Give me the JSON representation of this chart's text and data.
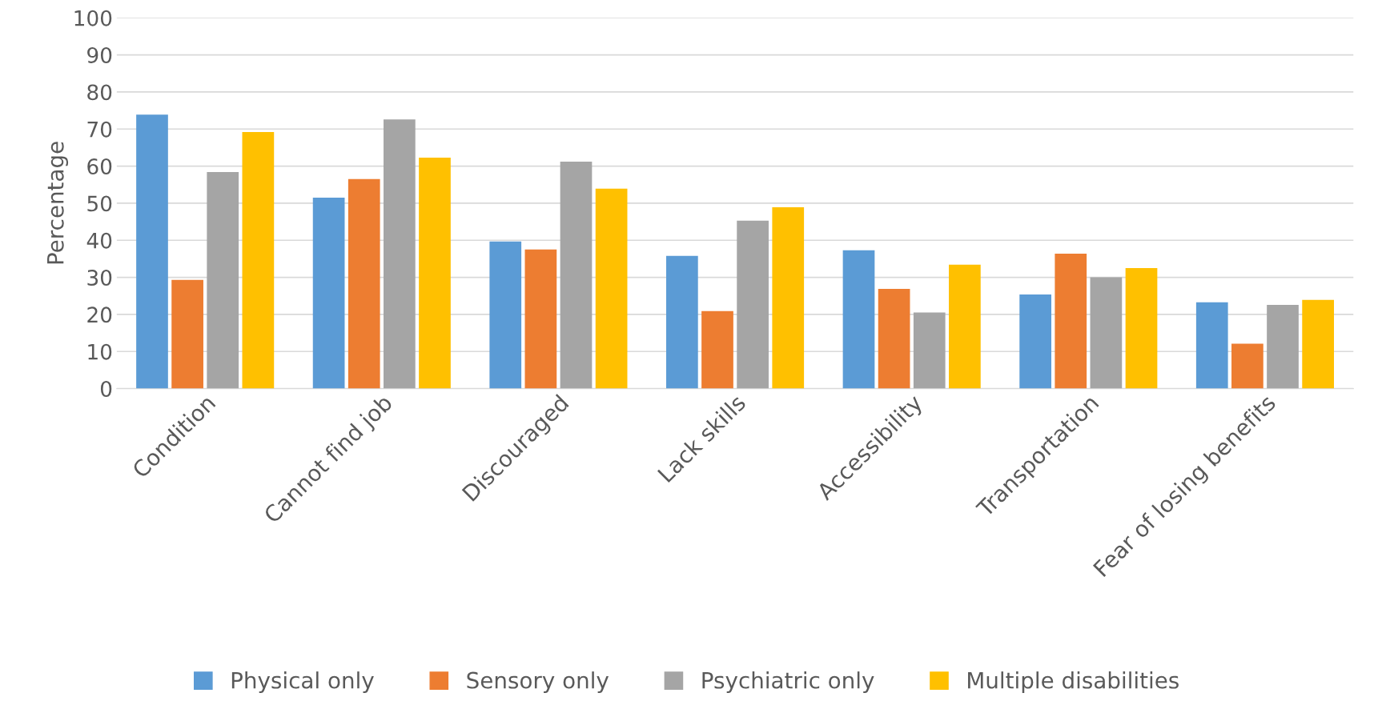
{
  "chart_data": {
    "type": "bar",
    "ylabel": "Percentage",
    "categories": [
      "Condition",
      "Cannot find job",
      "Discouraged",
      "Lack skills",
      "Accessibility",
      "Transportation",
      "Fear of losing benefits"
    ],
    "series": [
      {
        "name": "Physical only",
        "color": "#5b9bd5",
        "values": [
          73.9,
          51.5,
          39.7,
          35.8,
          37.3,
          25.4,
          23.3
        ]
      },
      {
        "name": "Sensory only",
        "color": "#ed7d31",
        "values": [
          29.3,
          56.5,
          37.5,
          20.9,
          26.9,
          36.4,
          12.1
        ]
      },
      {
        "name": "Psychiatric only",
        "color": "#a5a5a5",
        "values": [
          58.4,
          72.6,
          61.2,
          45.3,
          20.5,
          30.0,
          22.6
        ]
      },
      {
        "name": "Multiple disabilities",
        "color": "#ffc000",
        "values": [
          69.2,
          62.3,
          53.9,
          48.9,
          33.4,
          32.5,
          23.9
        ]
      }
    ],
    "ylim": [
      0,
      100
    ],
    "yticks": [
      0,
      10,
      20,
      30,
      40,
      50,
      60,
      70,
      80,
      90,
      100
    ],
    "grid": "y",
    "legend": "bottom"
  }
}
